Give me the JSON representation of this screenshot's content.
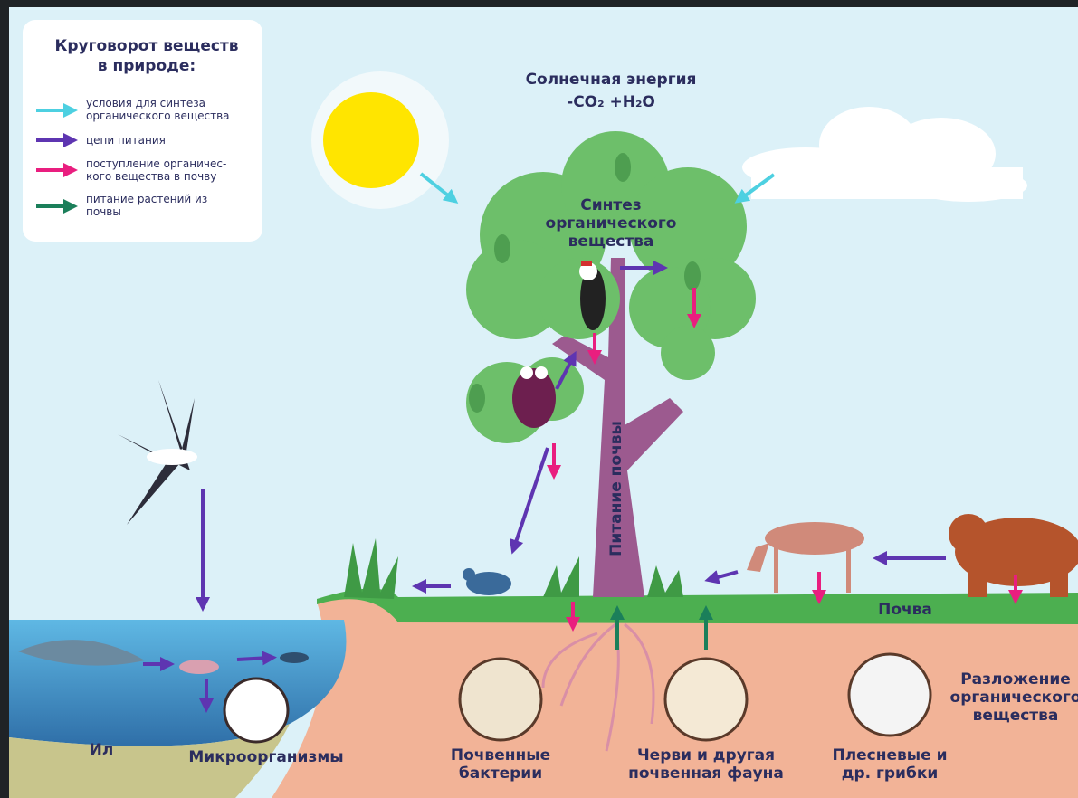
{
  "legend": {
    "title": [
      "Круговорот веществ",
      "в природе:"
    ],
    "items": [
      {
        "text": [
          "условия для синтеза",
          "органического вещества"
        ]
      },
      {
        "text": [
          "цепи питания"
        ]
      },
      {
        "text": [
          "поступление органичес-",
          "кого вещества в почву"
        ]
      },
      {
        "text": [
          "питание растений из",
          "почвы"
        ]
      }
    ]
  },
  "labels": {
    "sun": [
      "Солнечная энергия",
      "-CO₂   +H₂O"
    ],
    "synthesis": [
      "Синтез",
      "органического",
      "вещества"
    ],
    "soil_nutrition": "Питание почвы",
    "soil": "Почва",
    "decomposition": [
      "Разложение",
      "органического",
      "вещества"
    ],
    "silt": "Ил",
    "microorganisms": "Микроорганизмы",
    "bacteria": [
      "Почвенные",
      "бактерии"
    ],
    "worms": [
      "Черви и другая",
      "почвенная фауна"
    ],
    "fungi": [
      "Плесневые и",
      "др. грибки"
    ]
  }
}
